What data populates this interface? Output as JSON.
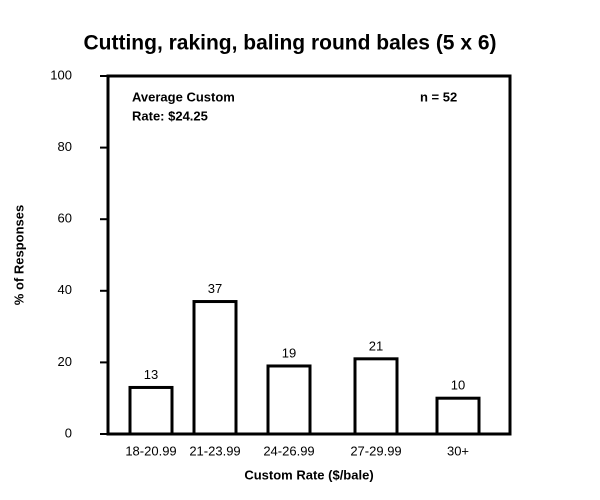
{
  "chart_data": {
    "type": "bar",
    "title": "Cutting, raking, baling round bales (5 x 6)",
    "xlabel": "Custom Rate ($/bale)",
    "ylabel": "% of Responses",
    "categories": [
      "18-20.99",
      "21-23.99",
      "24-26.99",
      "27-29.99",
      "30+"
    ],
    "values": [
      13,
      37,
      19,
      21,
      10
    ],
    "color": "#ffffff",
    "edgecolor": "#000000",
    "ylim": [
      0,
      100
    ],
    "yticks": [
      0,
      20,
      40,
      60,
      80,
      100
    ],
    "annotations": [
      "Average Custom",
      "Rate: $24.25",
      "n = 52"
    ]
  }
}
